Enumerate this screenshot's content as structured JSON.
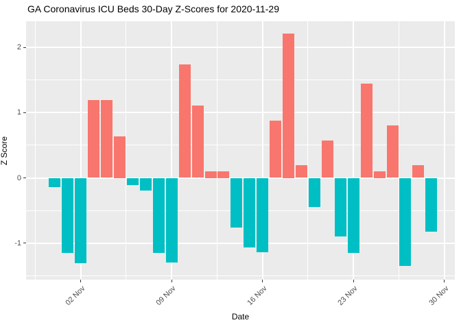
{
  "title": "GA Coronavirus ICU Beds 30-Day Z-Scores for 2020-11-29",
  "chart_data": {
    "type": "bar",
    "title": "GA Coronavirus ICU Beds 30-Day Z-Scores for 2020-11-29",
    "xlabel": "Date",
    "ylabel": "Z Score",
    "ylim": [
      -1.56,
      2.4
    ],
    "grid": "on",
    "legend": "none",
    "x_ticks": [
      {
        "label": "02 Nov",
        "day_index": 2
      },
      {
        "label": "09 Nov",
        "day_index": 9
      },
      {
        "label": "16 Nov",
        "day_index": 16
      },
      {
        "label": "23 Nov",
        "day_index": 23
      },
      {
        "label": "30 Nov",
        "day_index": 30
      }
    ],
    "y_ticks": [
      {
        "label": "2",
        "value": 2
      },
      {
        "label": "1",
        "value": 1
      },
      {
        "label": "0",
        "value": 0
      },
      {
        "label": "-1",
        "value": -1
      }
    ],
    "points": [
      {
        "date": "2020-10-31",
        "z": -0.14
      },
      {
        "date": "2020-11-01",
        "z": -1.15
      },
      {
        "date": "2020-11-02",
        "z": -1.31
      },
      {
        "date": "2020-11-03",
        "z": 1.19
      },
      {
        "date": "2020-11-04",
        "z": 1.19
      },
      {
        "date": "2020-11-05",
        "z": 0.64
      },
      {
        "date": "2020-11-06",
        "z": -0.11
      },
      {
        "date": "2020-11-07",
        "z": -0.19
      },
      {
        "date": "2020-11-08",
        "z": -1.15
      },
      {
        "date": "2020-11-09",
        "z": -1.3
      },
      {
        "date": "2020-11-10",
        "z": 1.74
      },
      {
        "date": "2020-11-11",
        "z": 1.11
      },
      {
        "date": "2020-11-12",
        "z": 0.1
      },
      {
        "date": "2020-11-13",
        "z": 0.1
      },
      {
        "date": "2020-11-14",
        "z": -0.76
      },
      {
        "date": "2020-11-15",
        "z": -1.06
      },
      {
        "date": "2020-11-16",
        "z": -1.14
      },
      {
        "date": "2020-11-17",
        "z": 0.88
      },
      {
        "date": "2020-11-18",
        "z": 2.21
      },
      {
        "date": "2020-11-19",
        "z": 0.19
      },
      {
        "date": "2020-11-20",
        "z": -0.45
      },
      {
        "date": "2020-11-21",
        "z": 0.57
      },
      {
        "date": "2020-11-22",
        "z": -0.9
      },
      {
        "date": "2020-11-23",
        "z": -1.15
      },
      {
        "date": "2020-11-24",
        "z": 1.44
      },
      {
        "date": "2020-11-25",
        "z": 0.1
      },
      {
        "date": "2020-11-26",
        "z": 0.8
      },
      {
        "date": "2020-11-27",
        "z": -1.35
      },
      {
        "date": "2020-11-28",
        "z": 0.19
      },
      {
        "date": "2020-11-29",
        "z": -0.82
      }
    ],
    "colors": {
      "positive": "#F8766D",
      "negative": "#00BFC4",
      "panel_background": "#EBEBEB",
      "gridline": "#FFFFFF",
      "axis_text": "#4D4D4D",
      "tick_mark": "#333333",
      "title_text": "#000000"
    }
  }
}
